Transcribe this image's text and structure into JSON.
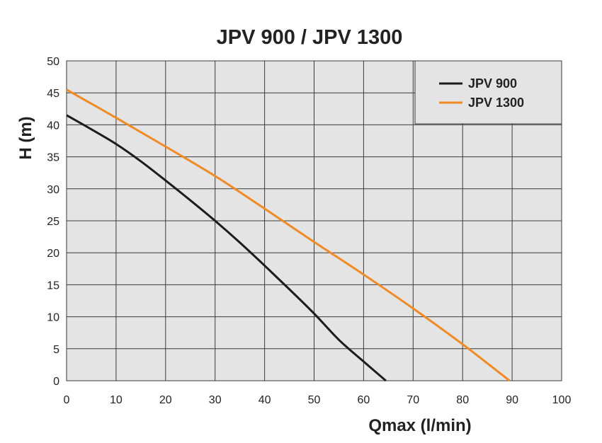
{
  "chart_data": {
    "type": "line",
    "title": "JPV 900 / JPV 1300",
    "xlabel": "Qmax (l/min)",
    "ylabel": "H (m)",
    "xlim": [
      0,
      100
    ],
    "ylim": [
      0,
      50
    ],
    "x_ticks": [
      0,
      10,
      20,
      30,
      40,
      50,
      60,
      70,
      80,
      90,
      100
    ],
    "y_ticks": [
      0,
      5,
      10,
      15,
      20,
      25,
      30,
      35,
      40,
      45,
      50
    ],
    "grid": true,
    "legend_position": "top-right",
    "plot_background": "#e4e4e4",
    "series": [
      {
        "name": "JPV 900",
        "color": "#1c1c1c",
        "points": [
          [
            0,
            41.5
          ],
          [
            5,
            39.3
          ],
          [
            10,
            37.0
          ],
          [
            15,
            34.3
          ],
          [
            20,
            31.3
          ],
          [
            25,
            28.2
          ],
          [
            30,
            25.0
          ],
          [
            35,
            21.6
          ],
          [
            40,
            18.0
          ],
          [
            45,
            14.3
          ],
          [
            50,
            10.5
          ],
          [
            55,
            6.4
          ],
          [
            60,
            3.0
          ],
          [
            64.5,
            0
          ]
        ]
      },
      {
        "name": "JPV 1300",
        "color": "#f08a24",
        "points": [
          [
            0,
            45.5
          ],
          [
            10,
            41.1
          ],
          [
            20,
            36.6
          ],
          [
            30,
            32.0
          ],
          [
            40,
            26.9
          ],
          [
            50,
            21.7
          ],
          [
            60,
            16.6
          ],
          [
            70,
            11.3
          ],
          [
            80,
            5.7
          ],
          [
            89.5,
            0
          ]
        ]
      }
    ]
  }
}
